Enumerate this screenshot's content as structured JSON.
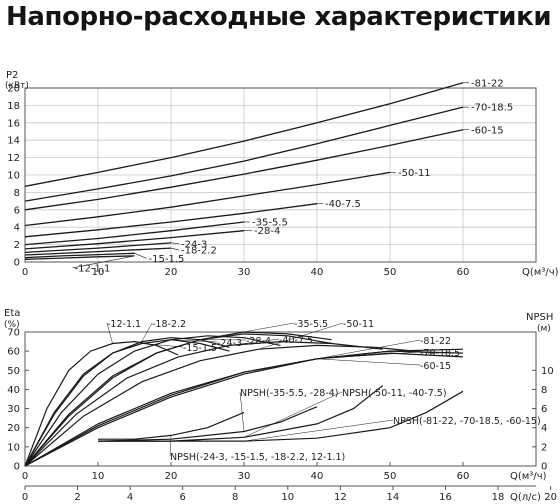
{
  "page": {
    "title": "Напорно-расходные характеристики"
  },
  "chart_data": [
    {
      "type": "line",
      "ylabel": "P2",
      "yunit": "(кВт)",
      "xlabel": "Q(м³/ч)",
      "xlim": [
        0,
        70
      ],
      "ylim": [
        0,
        20
      ],
      "xticks": [
        0,
        10,
        20,
        30,
        40,
        50,
        60
      ],
      "yticks": [
        0,
        2,
        4,
        6,
        8,
        10,
        12,
        14,
        16,
        18,
        20
      ],
      "grid": true,
      "series": [
        {
          "name": "-81-22",
          "x": [
            0,
            10,
            20,
            30,
            40,
            50,
            60
          ],
          "y": [
            8.7,
            10.3,
            12.0,
            13.9,
            16.0,
            18.2,
            20.6
          ]
        },
        {
          "name": "-70-18.5",
          "x": [
            0,
            10,
            20,
            30,
            40,
            50,
            60
          ],
          "y": [
            7.0,
            8.4,
            9.9,
            11.6,
            13.6,
            15.7,
            17.8
          ]
        },
        {
          "name": "-60-15",
          "x": [
            0,
            10,
            20,
            30,
            40,
            50,
            60
          ],
          "y": [
            6.0,
            7.2,
            8.6,
            10.1,
            11.7,
            13.4,
            15.2
          ]
        },
        {
          "name": "-50-11",
          "x": [
            0,
            10,
            20,
            30,
            40,
            50
          ],
          "y": [
            4.2,
            5.2,
            6.3,
            7.6,
            8.9,
            10.3
          ]
        },
        {
          "name": "-40-7.5",
          "x": [
            0,
            10,
            20,
            30,
            40
          ],
          "y": [
            2.9,
            3.7,
            4.6,
            5.6,
            6.7
          ]
        },
        {
          "name": "-35-5.5",
          "x": [
            0,
            10,
            20,
            30
          ],
          "y": [
            2.0,
            2.7,
            3.6,
            4.6
          ]
        },
        {
          "name": "-28-4",
          "x": [
            0,
            10,
            20,
            30
          ],
          "y": [
            1.5,
            2.1,
            2.8,
            3.6
          ]
        },
        {
          "name": "-24-3",
          "x": [
            0,
            10,
            20
          ],
          "y": [
            1.1,
            1.6,
            2.2
          ]
        },
        {
          "name": "-18-2.2",
          "x": [
            0,
            10,
            20
          ],
          "y": [
            0.8,
            1.2,
            1.6
          ]
        },
        {
          "name": "-15-1.5",
          "x": [
            0,
            5,
            10,
            15
          ],
          "y": [
            0.5,
            0.7,
            0.85,
            1.0
          ]
        },
        {
          "name": "-12-1.1",
          "x": [
            0,
            5,
            10,
            15
          ],
          "y": [
            0.3,
            0.45,
            0.6,
            0.7
          ]
        }
      ]
    },
    {
      "type": "line",
      "ylabel": "Eta",
      "yunit": "(%)",
      "y2label": "NPSH",
      "y2unit": "(м)",
      "xlabel_top": "Q(м³/ч)",
      "xlabel_bottom": "Q(л/с)",
      "xlim_m3h": [
        0,
        70
      ],
      "ylim": [
        0,
        70
      ],
      "y2lim": [
        0,
        14
      ],
      "xticks_m3h": [
        0,
        10,
        20,
        30,
        40,
        50,
        60
      ],
      "xticks_ls": [
        0,
        2,
        4,
        6,
        8,
        10,
        12,
        14,
        16,
        18,
        20
      ],
      "yticks": [
        0,
        10,
        20,
        30,
        40,
        50,
        60,
        70
      ],
      "y2ticks": [
        0,
        2,
        4,
        6,
        8,
        10
      ],
      "grid": false,
      "series": [
        {
          "name": "-12-1.1",
          "x": [
            0,
            3,
            6,
            9,
            12,
            15,
            18,
            21
          ],
          "y": [
            0,
            30,
            50,
            60,
            64,
            65,
            63,
            58
          ]
        },
        {
          "name": "-15-1.5",
          "x": [
            0,
            4,
            8,
            12,
            16,
            20,
            24,
            28
          ],
          "y": [
            0,
            28,
            48,
            59,
            64,
            66,
            64,
            60
          ]
        },
        {
          "name": "-18-2.2",
          "x": [
            0,
            4,
            8,
            12,
            16,
            20,
            24,
            28
          ],
          "y": [
            0,
            27,
            47,
            59,
            65,
            67,
            66,
            62
          ]
        },
        {
          "name": "-24-3",
          "x": [
            0,
            5,
            10,
            15,
            20,
            25,
            30,
            35
          ],
          "y": [
            0,
            28,
            48,
            60,
            66,
            68,
            67,
            63
          ]
        },
        {
          "name": "-28-4",
          "x": [
            0,
            6,
            12,
            18,
            24,
            30,
            36,
            42
          ],
          "y": [
            0,
            27,
            47,
            59,
            66,
            69,
            68,
            64
          ]
        },
        {
          "name": "-35-5.5",
          "x": [
            0,
            6,
            12,
            18,
            24,
            30,
            36,
            42
          ],
          "y": [
            0,
            26,
            46,
            59,
            66,
            70,
            69,
            66
          ]
        },
        {
          "name": "-40-7.5",
          "x": [
            0,
            7,
            14,
            21,
            28,
            35,
            42,
            49
          ],
          "y": [
            0,
            27,
            46,
            57,
            63,
            65,
            64,
            61
          ]
        },
        {
          "name": "-50-11",
          "x": [
            0,
            8,
            16,
            24,
            32,
            40,
            48,
            56
          ],
          "y": [
            0,
            26,
            44,
            55,
            61,
            63,
            62,
            59
          ]
        },
        {
          "name": "-60-15",
          "x": [
            0,
            10,
            20,
            30,
            40,
            50,
            60
          ],
          "y": [
            0,
            22,
            38,
            49,
            56,
            59,
            57
          ]
        },
        {
          "name": "-70-18.5",
          "x": [
            0,
            10,
            20,
            30,
            40,
            50,
            60
          ],
          "y": [
            0,
            21,
            37,
            49,
            56,
            60,
            59
          ]
        },
        {
          "name": "-81-22",
          "x": [
            0,
            10,
            20,
            30,
            40,
            50,
            60
          ],
          "y": [
            0,
            20,
            36,
            48,
            56,
            60,
            61
          ]
        },
        {
          "name": "NPSH(-24-3, -15-1.5, -18-2.2, 12-1.1)",
          "axis": "y2",
          "x": [
            10,
            15,
            20,
            25,
            30
          ],
          "y": [
            2.8,
            2.8,
            3.2,
            4.0,
            5.6
          ]
        },
        {
          "name": "NPSH(-35-5.5, -28-4)",
          "axis": "y2",
          "x": [
            10,
            20,
            30,
            35,
            40
          ],
          "y": [
            2.6,
            2.8,
            3.6,
            4.6,
            6.2
          ]
        },
        {
          "name": "NPSH(-50-11, -40-7.5)",
          "axis": "y2",
          "x": [
            10,
            20,
            30,
            40,
            45,
            49
          ],
          "y": [
            2.6,
            2.6,
            3.0,
            4.4,
            6.0,
            8.4
          ]
        },
        {
          "name": "NPSH(-81-22, -70-18.5, -60-15)",
          "axis": "y2",
          "x": [
            10,
            20,
            30,
            40,
            50,
            55,
            60
          ],
          "y": [
            2.6,
            2.6,
            2.6,
            2.9,
            4.0,
            5.6,
            7.8
          ]
        }
      ]
    }
  ]
}
